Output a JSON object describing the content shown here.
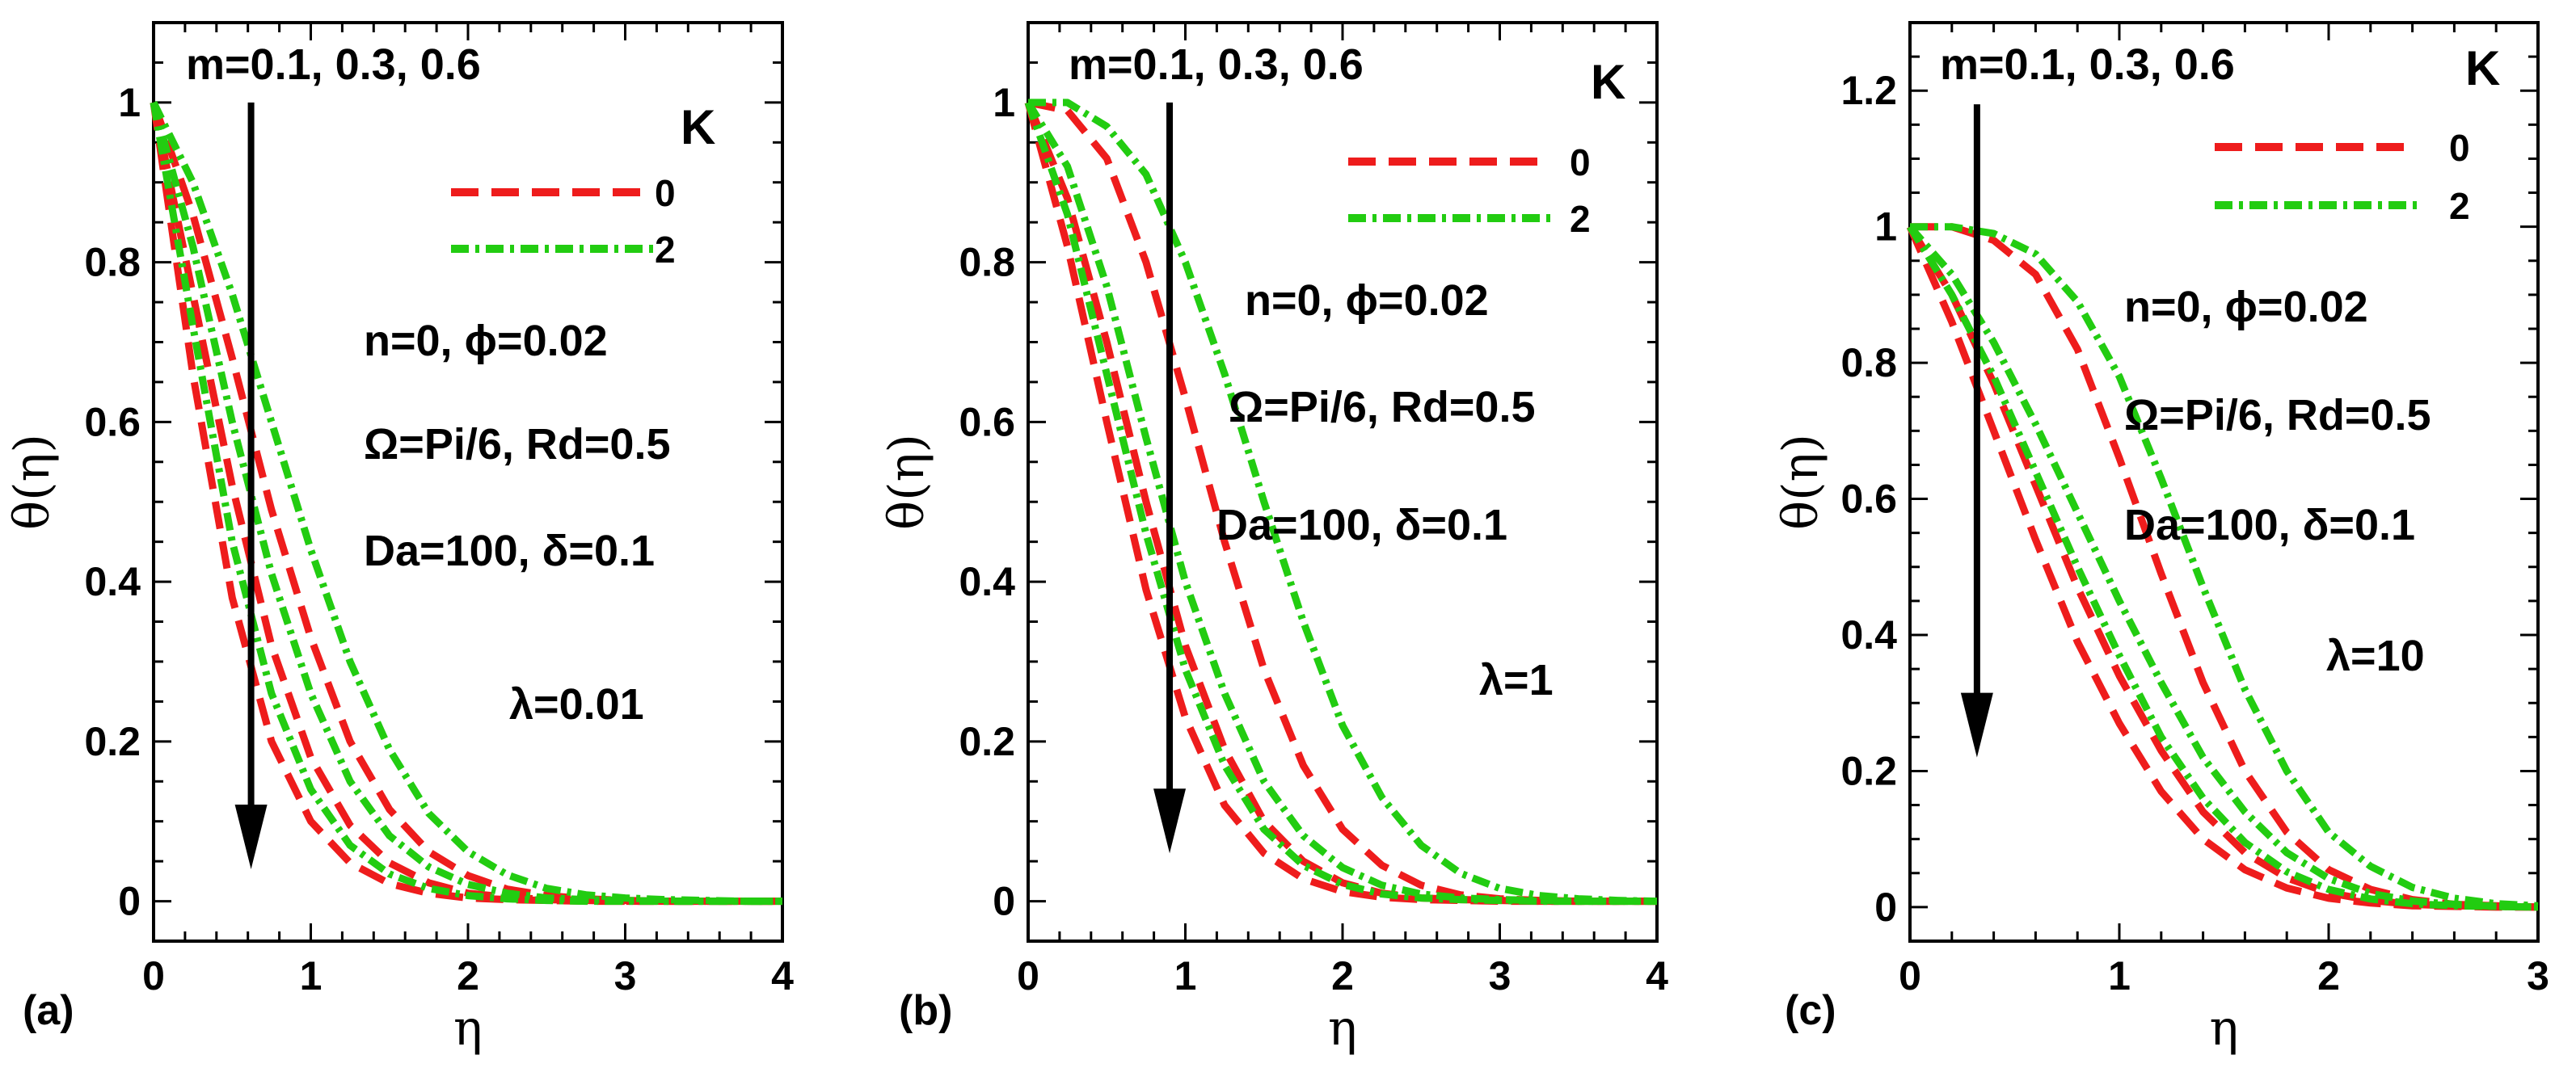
{
  "chart_data": [
    {
      "type": "line",
      "panel_label": "(a)",
      "xlabel": "η",
      "ylabel": "θ(η)",
      "xlim": [
        0,
        4
      ],
      "ylim": [
        -0.05,
        1.1
      ],
      "x_ticks": [
        0,
        1,
        2,
        3,
        4
      ],
      "x_tick_labels": [
        "0",
        "1",
        "2",
        "3",
        "4"
      ],
      "y_ticks": [
        0,
        0.2,
        0.4,
        0.6,
        0.8,
        1
      ],
      "y_tick_labels": [
        "0",
        "0.2",
        "0.4",
        "0.6",
        "0.8",
        "1"
      ],
      "annotations": [
        "m=0.1, 0.3, 0.6",
        "n=0, ϕ=0.02",
        "Ω=Pi/6, Rd=0.5",
        "Da=100, δ=0.1",
        "λ=0.01"
      ],
      "arrow": {
        "x": 0.62,
        "y_from": 1.0,
        "y_to": 0.04
      },
      "legend": {
        "title": "K",
        "entries": [
          {
            "label": "0",
            "color": "#ee1c1c",
            "style": "dashed"
          },
          {
            "label": "2",
            "color": "#22cc11",
            "style": "dashdot"
          }
        ]
      },
      "x": [
        0,
        0.25,
        0.5,
        0.75,
        1,
        1.25,
        1.5,
        1.75,
        2,
        2.25,
        2.5,
        2.75,
        3,
        3.25,
        3.5,
        3.75,
        4
      ],
      "series": [
        {
          "name": "K=0, m=0.1",
          "K": "0",
          "values": [
            1.0,
            0.66,
            0.38,
            0.2,
            0.1,
            0.048,
            0.022,
            0.01,
            0.004,
            0.002,
            0.001,
            0,
            0,
            0,
            0,
            0,
            0
          ]
        },
        {
          "name": "K=0, m=0.3",
          "K": "0",
          "values": [
            1.0,
            0.76,
            0.52,
            0.32,
            0.18,
            0.095,
            0.048,
            0.023,
            0.01,
            0.005,
            0.002,
            0.001,
            0,
            0,
            0,
            0,
            0
          ]
        },
        {
          "name": "K=0, m=0.6",
          "K": "0",
          "values": [
            1.0,
            0.86,
            0.68,
            0.49,
            0.33,
            0.2,
            0.115,
            0.062,
            0.032,
            0.015,
            0.007,
            0.003,
            0.001,
            0,
            0,
            0,
            0
          ]
        },
        {
          "name": "K=2, m=0.1",
          "K": "2",
          "values": [
            1.0,
            0.72,
            0.45,
            0.26,
            0.14,
            0.07,
            0.034,
            0.016,
            0.007,
            0.003,
            0.001,
            0,
            0,
            0,
            0,
            0,
            0
          ]
        },
        {
          "name": "K=2, m=0.3",
          "K": "2",
          "values": [
            1.0,
            0.82,
            0.6,
            0.41,
            0.26,
            0.15,
            0.082,
            0.043,
            0.021,
            0.01,
            0.004,
            0.002,
            0.001,
            0,
            0,
            0,
            0
          ]
        },
        {
          "name": "K=2, m=0.6",
          "K": "2",
          "values": [
            1.0,
            0.9,
            0.76,
            0.6,
            0.44,
            0.3,
            0.19,
            0.11,
            0.062,
            0.033,
            0.016,
            0.008,
            0.004,
            0.002,
            0.001,
            0,
            0
          ]
        }
      ]
    },
    {
      "type": "line",
      "panel_label": "(b)",
      "xlabel": "η",
      "ylabel": "θ(η)",
      "xlim": [
        0,
        4
      ],
      "ylim": [
        -0.05,
        1.1
      ],
      "x_ticks": [
        0,
        1,
        2,
        3,
        4
      ],
      "x_tick_labels": [
        "0",
        "1",
        "2",
        "3",
        "4"
      ],
      "y_ticks": [
        0,
        0.2,
        0.4,
        0.6,
        0.8,
        1
      ],
      "y_tick_labels": [
        "0",
        "0.2",
        "0.4",
        "0.6",
        "0.8",
        "1"
      ],
      "annotations": [
        "m=0.1, 0.3, 0.6",
        "n=0, ϕ=0.02",
        "Ω=Pi/6, Rd=0.5",
        "Da=100, δ=0.1",
        "λ=1"
      ],
      "arrow": {
        "x": 0.9,
        "y_from": 1.0,
        "y_to": 0.06
      },
      "legend": {
        "title": "K",
        "entries": [
          {
            "label": "0",
            "color": "#ee1c1c",
            "style": "dashed"
          },
          {
            "label": "2",
            "color": "#22cc11",
            "style": "dashdot"
          }
        ]
      },
      "x": [
        0,
        0.25,
        0.5,
        0.75,
        1,
        1.25,
        1.5,
        1.75,
        2,
        2.25,
        2.5,
        2.75,
        3,
        3.25,
        3.5,
        3.75,
        4
      ],
      "series": [
        {
          "name": "K=0, m=0.1",
          "K": "0",
          "values": [
            1.0,
            0.82,
            0.6,
            0.39,
            0.23,
            0.12,
            0.06,
            0.028,
            0.012,
            0.005,
            0.002,
            0.001,
            0,
            0,
            0,
            0,
            0
          ]
        },
        {
          "name": "K=0, m=0.3",
          "K": "0",
          "values": [
            1.0,
            0.88,
            0.7,
            0.5,
            0.32,
            0.19,
            0.1,
            0.05,
            0.023,
            0.01,
            0.004,
            0.002,
            0.001,
            0,
            0,
            0,
            0
          ]
        },
        {
          "name": "K=0, m=0.6",
          "K": "0",
          "values": [
            1.0,
            0.99,
            0.93,
            0.8,
            0.63,
            0.45,
            0.29,
            0.17,
            0.09,
            0.045,
            0.02,
            0.008,
            0.003,
            0.001,
            0,
            0,
            0
          ]
        },
        {
          "name": "K=2, m=0.1",
          "K": "2",
          "values": [
            1.0,
            0.86,
            0.66,
            0.46,
            0.29,
            0.17,
            0.09,
            0.045,
            0.021,
            0.009,
            0.004,
            0.002,
            0.001,
            0,
            0,
            0,
            0
          ]
        },
        {
          "name": "K=2, m=0.3",
          "K": "2",
          "values": [
            1.0,
            0.92,
            0.77,
            0.58,
            0.4,
            0.26,
            0.15,
            0.082,
            0.042,
            0.02,
            0.009,
            0.004,
            0.002,
            0.001,
            0,
            0,
            0
          ]
        },
        {
          "name": "K=2, m=0.6",
          "K": "2",
          "values": [
            1.0,
            1.0,
            0.97,
            0.91,
            0.8,
            0.66,
            0.5,
            0.35,
            0.22,
            0.13,
            0.07,
            0.035,
            0.016,
            0.007,
            0.003,
            0.001,
            0
          ]
        }
      ]
    },
    {
      "type": "line",
      "panel_label": "(c)",
      "xlabel": "η",
      "ylabel": "θ(η)",
      "xlim": [
        0,
        3
      ],
      "ylim": [
        -0.05,
        1.3
      ],
      "x_ticks": [
        0,
        1,
        2,
        3
      ],
      "x_tick_labels": [
        "0",
        "1",
        "2",
        "3"
      ],
      "y_ticks": [
        0,
        0.2,
        0.4,
        0.6,
        0.8,
        1,
        1.2
      ],
      "y_tick_labels": [
        "0",
        "0.2",
        "0.4",
        "0.6",
        "0.8",
        "1",
        "1.2"
      ],
      "annotations": [
        "m=0.1, 0.3, 0.6",
        "n=0, ϕ=0.02",
        "Ω=Pi/6, Rd=0.5",
        "Da=100, δ=0.1",
        "λ=10"
      ],
      "arrow": {
        "x": 0.32,
        "y_from": 1.18,
        "y_to": 0.22
      },
      "legend": {
        "title": "K",
        "entries": [
          {
            "label": "0",
            "color": "#ee1c1c",
            "style": "dashed"
          },
          {
            "label": "2",
            "color": "#22cc11",
            "style": "dashdot"
          }
        ]
      },
      "x": [
        0,
        0.2,
        0.4,
        0.6,
        0.8,
        1.0,
        1.2,
        1.4,
        1.6,
        1.8,
        2.0,
        2.2,
        2.4,
        2.6,
        2.8,
        3.0
      ],
      "series": [
        {
          "name": "K=0, m=0.1",
          "K": "0",
          "values": [
            1.0,
            0.86,
            0.7,
            0.54,
            0.39,
            0.27,
            0.17,
            0.1,
            0.055,
            0.028,
            0.013,
            0.006,
            0.002,
            0.001,
            0,
            0
          ]
        },
        {
          "name": "K=0, m=0.3",
          "K": "0",
          "values": [
            1.0,
            0.9,
            0.77,
            0.62,
            0.47,
            0.34,
            0.23,
            0.14,
            0.08,
            0.043,
            0.021,
            0.01,
            0.004,
            0.002,
            0.001,
            0
          ]
        },
        {
          "name": "K=0, m=0.6",
          "K": "0",
          "values": [
            1.0,
            1.0,
            0.98,
            0.93,
            0.82,
            0.66,
            0.49,
            0.33,
            0.2,
            0.11,
            0.055,
            0.026,
            0.011,
            0.004,
            0.002,
            0
          ]
        },
        {
          "name": "K=2, m=0.1",
          "K": "2",
          "values": [
            1.0,
            0.9,
            0.78,
            0.64,
            0.5,
            0.37,
            0.25,
            0.16,
            0.095,
            0.052,
            0.026,
            0.012,
            0.005,
            0.002,
            0.001,
            0
          ]
        },
        {
          "name": "K=2, m=0.3",
          "K": "2",
          "values": [
            1.0,
            0.93,
            0.83,
            0.71,
            0.58,
            0.45,
            0.33,
            0.22,
            0.14,
            0.08,
            0.042,
            0.02,
            0.009,
            0.004,
            0.001,
            0
          ]
        },
        {
          "name": "K=2, m=0.6",
          "K": "2",
          "values": [
            1.0,
            1.0,
            0.99,
            0.96,
            0.89,
            0.78,
            0.63,
            0.47,
            0.32,
            0.2,
            0.11,
            0.06,
            0.029,
            0.013,
            0.005,
            0.002
          ]
        }
      ]
    }
  ]
}
